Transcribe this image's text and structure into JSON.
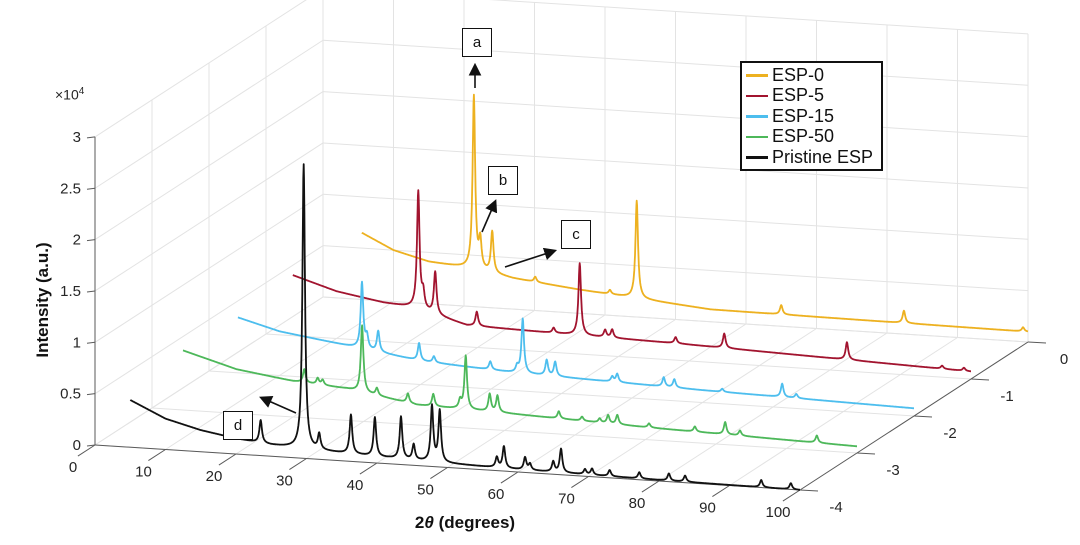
{
  "chart_data": {
    "type": "line",
    "subtype": "3d-waterfall",
    "xlabel_prefix": "2",
    "xlabel_symbol": "θ",
    "xlabel_suffix": " (degrees)",
    "zlabel": "Intensity (a.u.)",
    "z_exponent_base": "×10",
    "z_exponent_power": "4",
    "xlim": [
      0,
      100
    ],
    "ylim": [
      -4,
      0
    ],
    "zlim": [
      0,
      30000
    ],
    "x_ticks": [
      0,
      10,
      20,
      30,
      40,
      50,
      60,
      70,
      80,
      90,
      100
    ],
    "x_tick_labels": [
      "0",
      "10",
      "20",
      "30",
      "40",
      "50",
      "60",
      "70",
      "80",
      "90",
      "100"
    ],
    "y_ticks": [
      0,
      -1,
      -2,
      -3,
      -4
    ],
    "y_tick_labels": [
      "0",
      "-1",
      "-2",
      "-3",
      "-4"
    ],
    "z_ticks": [
      0,
      5000,
      10000,
      15000,
      20000,
      25000,
      30000
    ],
    "z_tick_labels": [
      "0",
      "0.5",
      "1",
      "1.5",
      "2",
      "2.5",
      "3"
    ],
    "grid": true,
    "legend_position": "top-right",
    "series": [
      {
        "name": "ESP-0",
        "color": "#EDB120",
        "y": 0,
        "background": [
          [
            5.5,
            6500
          ],
          [
            10,
            5000
          ],
          [
            15,
            4100
          ],
          [
            21,
            3700
          ],
          [
            27,
            3000
          ],
          [
            36.5,
            2300
          ],
          [
            55,
            1200
          ],
          [
            100,
            1000
          ]
        ],
        "peaks": [
          [
            21.4,
            16800
          ],
          [
            22.3,
            2700
          ],
          [
            24,
            4000
          ],
          [
            30.1,
            500
          ],
          [
            40.7,
            400
          ],
          [
            44.5,
            9500
          ],
          [
            65,
            900
          ],
          [
            82.4,
            1200
          ],
          [
            99.3,
            400
          ]
        ]
      },
      {
        "name": "ESP-5",
        "color": "#A2142F",
        "y": -1,
        "background": [
          [
            3.8,
            5900
          ],
          [
            10,
            4600
          ],
          [
            16.6,
            3800
          ],
          [
            21,
            3500
          ],
          [
            28.5,
            2100
          ],
          [
            40,
            1900
          ],
          [
            57.7,
            1650
          ],
          [
            100,
            730
          ]
        ],
        "peaks": [
          [
            21.6,
            11400
          ],
          [
            22.3,
            1500
          ],
          [
            24,
            4100
          ],
          [
            29.9,
            1400
          ],
          [
            40.8,
            500
          ],
          [
            44.5,
            7000
          ],
          [
            48.1,
            700
          ],
          [
            49.1,
            800
          ],
          [
            58.1,
            600
          ],
          [
            65,
            1400
          ],
          [
            82.4,
            1700
          ],
          [
            95.9,
            300
          ],
          [
            99,
            300
          ]
        ]
      },
      {
        "name": "ESP-15",
        "color": "#4DBEEE",
        "y": -2,
        "background": [
          [
            4.1,
            5400
          ],
          [
            10,
            4300
          ],
          [
            19,
            3400
          ],
          [
            30,
            2300
          ],
          [
            43,
            1750
          ],
          [
            70,
            1200
          ],
          [
            100,
            750
          ]
        ],
        "peaks": [
          [
            21.7,
            6400
          ],
          [
            22.4,
            1200
          ],
          [
            24,
            2000
          ],
          [
            29.8,
            1700
          ],
          [
            31.9,
            600
          ],
          [
            39.9,
            800
          ],
          [
            43.7,
            600
          ],
          [
            44.5,
            5300
          ],
          [
            47.9,
            1500
          ],
          [
            49.1,
            1400
          ],
          [
            57.2,
            500
          ],
          [
            57.9,
            800
          ],
          [
            64.5,
            900
          ],
          [
            66,
            800
          ],
          [
            72.8,
            300
          ],
          [
            81.3,
            1300
          ],
          [
            83.3,
            400
          ]
        ]
      },
      {
        "name": "ESP-50",
        "color": "#4DB85A",
        "y": -3,
        "background": [
          [
            4.4,
            5800
          ],
          [
            12,
            4300
          ],
          [
            20,
            3500
          ],
          [
            27.6,
            3100
          ],
          [
            37.6,
            1950
          ],
          [
            50,
            1700
          ],
          [
            70,
            1200
          ],
          [
            100,
            650
          ]
        ],
        "peaks": [
          [
            21.6,
            1300
          ],
          [
            23.5,
            600
          ],
          [
            24.2,
            500
          ],
          [
            29.8,
            6500
          ],
          [
            31.9,
            700
          ],
          [
            36.3,
            900
          ],
          [
            39.9,
            1200
          ],
          [
            43.7,
            800
          ],
          [
            44.5,
            5200
          ],
          [
            47.9,
            1700
          ],
          [
            49,
            1600
          ],
          [
            57.7,
            700
          ],
          [
            61,
            400
          ],
          [
            63.5,
            400
          ],
          [
            64.7,
            800
          ],
          [
            66,
            900
          ],
          [
            70.5,
            400
          ],
          [
            77,
            500
          ],
          [
            81.3,
            1200
          ],
          [
            83.4,
            500
          ],
          [
            94.3,
            700
          ]
        ]
      },
      {
        "name": "Pristine ESP",
        "color": "#111111",
        "y": -4,
        "background": [
          [
            5,
            4600
          ],
          [
            10,
            3000
          ],
          [
            15,
            2100
          ],
          [
            20,
            1500
          ],
          [
            25,
            1100
          ],
          [
            30,
            900
          ],
          [
            40,
            600
          ],
          [
            50,
            400
          ],
          [
            60,
            250
          ],
          [
            80,
            100
          ],
          [
            100,
            0
          ]
        ],
        "peaks": [
          [
            23.5,
            2200
          ],
          [
            29.6,
            27700
          ],
          [
            31.8,
            1500
          ],
          [
            36.3,
            3800
          ],
          [
            39.7,
            3800
          ],
          [
            43.4,
            4100
          ],
          [
            45.2,
            1500
          ],
          [
            47.8,
            5400
          ],
          [
            48.9,
            5000
          ],
          [
            57,
            1000
          ],
          [
            58,
            2100
          ],
          [
            61,
            1200
          ],
          [
            61.7,
            600
          ],
          [
            65,
            1000
          ],
          [
            66.1,
            2300
          ],
          [
            69.5,
            500
          ],
          [
            70.5,
            600
          ],
          [
            73,
            600
          ],
          [
            77.2,
            600
          ],
          [
            81.4,
            700
          ],
          [
            83.7,
            600
          ],
          [
            94.5,
            700
          ],
          [
            98.7,
            600
          ]
        ]
      }
    ],
    "annotations": [
      {
        "label": "a"
      },
      {
        "label": "b"
      },
      {
        "label": "c"
      },
      {
        "label": "d"
      }
    ]
  }
}
